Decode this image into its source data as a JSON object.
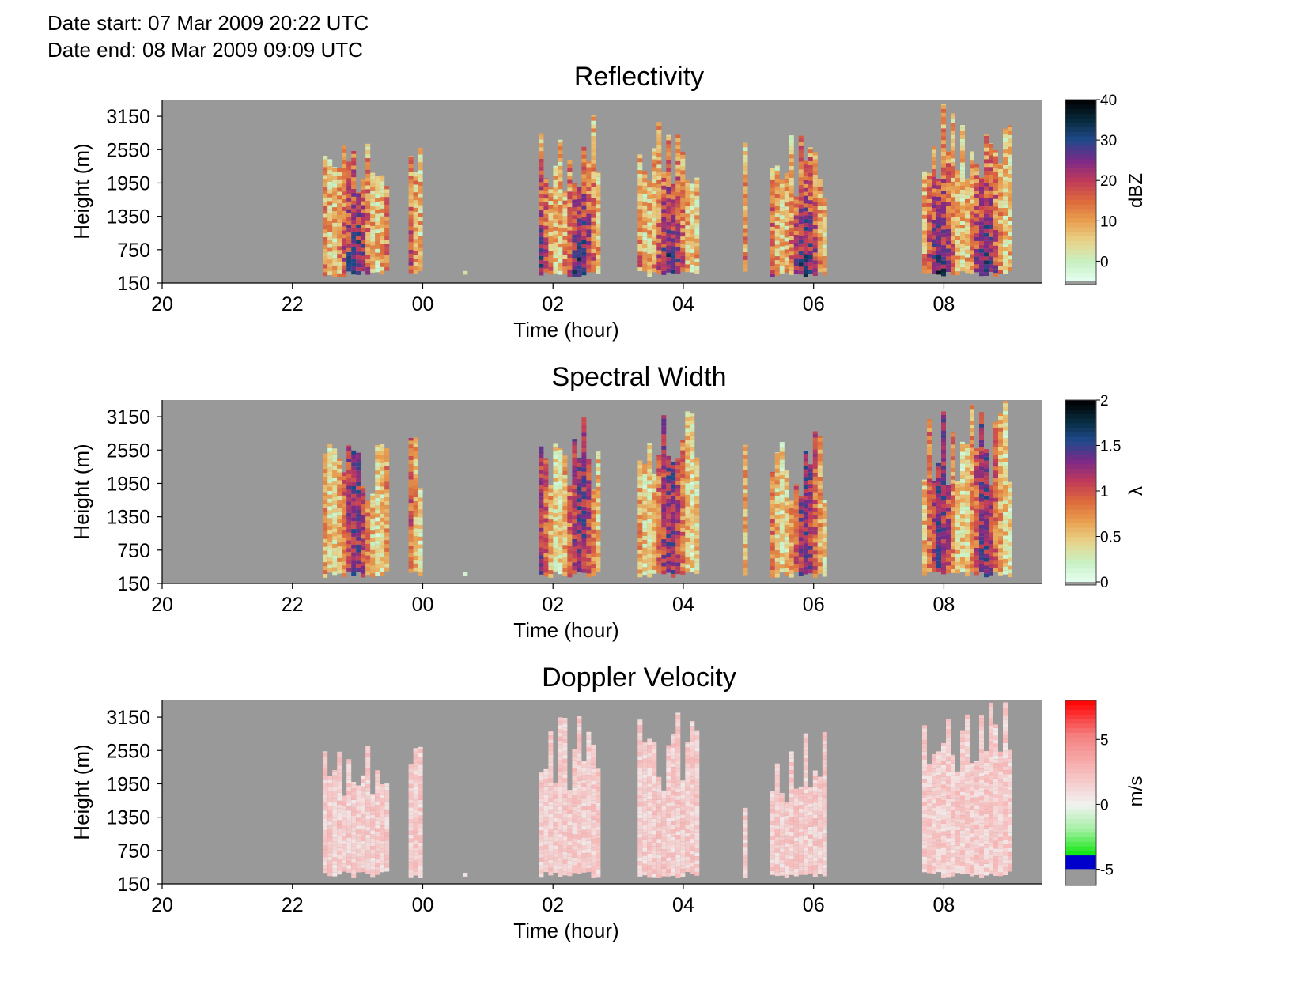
{
  "header": {
    "date_start_label": "Date start:",
    "date_start_value": "07 Mar 2009 20:22 UTC",
    "date_end_label": "Date end:",
    "date_end_value": "08 Mar 2009 09:09 UTC"
  },
  "colors": {
    "no_data": "#999999",
    "reflectivity_colormap": [
      "#e6fff2",
      "#c8f0c2",
      "#e8d48a",
      "#e9a050",
      "#dd6a3c",
      "#c03a5a",
      "#7a2a88",
      "#1f4a8c",
      "#082a3c",
      "#000000"
    ],
    "width_colormap": [
      "#e6fff2",
      "#c8f0c2",
      "#e8d48a",
      "#e9a050",
      "#dd6a3c",
      "#c03a5a",
      "#7a2a88",
      "#1f4a8c",
      "#082a3c",
      "#000000"
    ],
    "velocity_colormap": [
      "#999999",
      "#0000cc",
      "#00e600",
      "#9fef9f",
      "#f2f2f2",
      "#f7b8b8",
      "#f58080",
      "#ff0000"
    ]
  },
  "chart_data": [
    {
      "type": "heatmap",
      "title": "Reflectivity",
      "xlabel": "Time (hour)",
      "ylabel": "Height (m)",
      "x_ticks": [
        "20",
        "22",
        "00",
        "02",
        "04",
        "06",
        "08"
      ],
      "y_ticks": [
        "3150",
        "2550",
        "1950",
        "1350",
        "750",
        "150"
      ],
      "xlim_hours_since_20": [
        0,
        13.5
      ],
      "ylim": [
        150,
        3450
      ],
      "colorbar": {
        "label": "dBZ",
        "ticks": [
          "40",
          "30",
          "20",
          "10",
          "0"
        ],
        "range": [
          -5,
          40
        ],
        "colormap": "reflectivity"
      },
      "echo_periods_utc": [
        {
          "start": "22:28",
          "end": "23:25",
          "top_m": 2800
        },
        {
          "start": "23:47",
          "end": "24:00",
          "top_m": 2800
        },
        {
          "start": "00:37",
          "end": "00:38",
          "top_m": 400
        },
        {
          "start": "01:47",
          "end": "02:40",
          "top_m": 3200
        },
        {
          "start": "03:18",
          "end": "04:13",
          "top_m": 3300
        },
        {
          "start": "04:55",
          "end": "04:57",
          "top_m": 2700
        },
        {
          "start": "05:20",
          "end": "06:10",
          "top_m": 2950
        },
        {
          "start": "07:40",
          "end": "09:00",
          "top_m": 3450
        }
      ]
    },
    {
      "type": "heatmap",
      "title": "Spectral Width",
      "xlabel": "Time (hour)",
      "ylabel": "Height (m)",
      "x_ticks": [
        "20",
        "22",
        "00",
        "02",
        "04",
        "06",
        "08"
      ],
      "y_ticks": [
        "3150",
        "2550",
        "1950",
        "1350",
        "750",
        "150"
      ],
      "xlim_hours_since_20": [
        0,
        13.5
      ],
      "ylim": [
        150,
        3450
      ],
      "colorbar": {
        "label": "λ",
        "ticks": [
          "2",
          "1.5",
          "1",
          "0.5",
          "0"
        ],
        "range": [
          0,
          2
        ],
        "colormap": "width"
      }
    },
    {
      "type": "heatmap",
      "title": "Doppler Velocity",
      "xlabel": "Time (hour)",
      "ylabel": "Height (m)",
      "x_ticks": [
        "20",
        "22",
        "00",
        "02",
        "04",
        "06",
        "08"
      ],
      "y_ticks": [
        "3150",
        "2550",
        "1950",
        "1350",
        "750",
        "150"
      ],
      "xlim_hours_since_20": [
        0,
        13.5
      ],
      "ylim": [
        150,
        3450
      ],
      "colorbar": {
        "label": "m/s",
        "ticks": [
          "5",
          "0",
          "-5"
        ],
        "range": [
          -6,
          8
        ],
        "colormap": "velocity"
      }
    }
  ]
}
